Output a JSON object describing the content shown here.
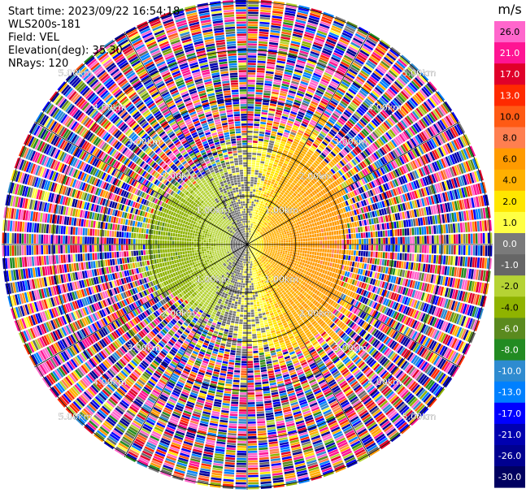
{
  "header": {
    "start_time": "Start time: 2023/09/22 16:54:18",
    "instrument": "WLS200s-181",
    "field": "Field: VEL",
    "elevation": "Elevation(deg): 35.30",
    "nrays": "NRays: 120"
  },
  "chart_data": {
    "type": "heatmap",
    "projection": "polar",
    "field": "VEL",
    "unit": "m/s",
    "n_rays": 120,
    "range_rings_km": [
      1.0,
      2.0,
      3.0,
      4.0,
      5.0
    ],
    "range_ring_labels": [
      "1.00km",
      "2.00km",
      "3.00km",
      "4.00km",
      "5.00km"
    ],
    "max_range_km": 5.05,
    "colorbar_ticks": [
      "26.0",
      "21.0",
      "17.0",
      "13.0",
      "10.0",
      "8.0",
      "6.0",
      "4.0",
      "2.0",
      "1.0",
      "0.0",
      "-1.0",
      "-2.0",
      "-4.0",
      "-6.0",
      "-8.0",
      "-10.0",
      "-13.0",
      "-17.0",
      "-21.0",
      "-26.0",
      "-30.0"
    ],
    "colorbar_values": [
      26,
      21,
      17,
      13,
      10,
      8,
      6,
      4,
      2,
      1,
      0,
      -1,
      -2,
      -4,
      -6,
      -8,
      -10,
      -13,
      -17,
      -21,
      -26,
      -30
    ],
    "colorbar_colors": [
      "#ff66cc",
      "#ff1493",
      "#e0002a",
      "#ff2a00",
      "#ff5a14",
      "#ff7f50",
      "#ff9a00",
      "#ffb000",
      "#ffe600",
      "#ffff44",
      "#7a7a7a",
      "#666666",
      "#b5d334",
      "#8fb300",
      "#5a8a1e",
      "#228b22",
      "#2e8bd0",
      "#0080ff",
      "#0000ff",
      "#0000b0",
      "#000090",
      "#000060"
    ],
    "pattern": {
      "near_field_km": 2.0,
      "east_half_sign": "receding (positive, 0 to 6 m/s)",
      "west_half_sign": "approaching (negative, -1 to -8 m/s)",
      "outer_field": "noise (random values, full scale)"
    }
  }
}
